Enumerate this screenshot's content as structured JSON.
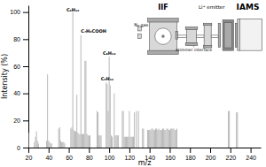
{
  "chart_data": {
    "type": "bar",
    "xlabel": "m/z",
    "ylabel": "Intensity (%)",
    "xlim": [
      20,
      250
    ],
    "ylim": [
      0,
      105
    ],
    "xticks": [
      20,
      40,
      60,
      80,
      100,
      120,
      140,
      160,
      180,
      200,
      220,
      240
    ],
    "yticks": [
      0,
      20,
      40,
      60,
      80,
      100
    ],
    "color": "#b8b8b8",
    "x": [
      20,
      26,
      27,
      28,
      29,
      30,
      38,
      39,
      40,
      41,
      42,
      43,
      50,
      51,
      52,
      53,
      54,
      55,
      56,
      62,
      63,
      64,
      65,
      66,
      67,
      68,
      69,
      70,
      71,
      72,
      73,
      74,
      75,
      76,
      77,
      78,
      79,
      80,
      81,
      88,
      89,
      90,
      91,
      92,
      97,
      98,
      99,
      100,
      101,
      102,
      103,
      105,
      106,
      107,
      108,
      109,
      113,
      114,
      115,
      116,
      117,
      118,
      119,
      120,
      121,
      122,
      123,
      124,
      125,
      127,
      129,
      133,
      134,
      138,
      139,
      140,
      141,
      142,
      143,
      144,
      145,
      146,
      147,
      148,
      149,
      150,
      151,
      152,
      153,
      154,
      155,
      156,
      157,
      158,
      159,
      160,
      161,
      162,
      163,
      164,
      165,
      166,
      167,
      218,
      219,
      226,
      227
    ],
    "values": [
      11,
      4,
      8,
      12,
      5,
      3,
      5,
      54,
      5,
      4,
      3,
      3,
      14,
      15,
      5,
      4,
      4,
      4,
      3,
      14,
      15,
      100,
      13,
      12,
      12,
      39,
      11,
      10,
      10,
      83,
      10,
      10,
      10,
      64,
      64,
      10,
      9,
      9,
      9,
      27,
      26,
      9,
      9,
      9,
      48,
      47,
      27,
      67,
      46,
      9,
      8,
      40,
      9,
      9,
      9,
      9,
      27,
      27,
      8,
      8,
      8,
      8,
      8,
      27,
      8,
      8,
      8,
      8,
      26,
      27,
      27,
      14,
      14,
      13,
      13,
      13,
      13,
      14,
      14,
      13,
      13,
      14,
      14,
      13,
      14,
      13,
      13,
      13,
      14,
      14,
      13,
      13,
      14,
      14,
      13,
      13,
      14,
      14,
      14,
      14,
      13,
      13,
      14,
      27,
      27,
      26,
      26
    ],
    "annotations": [
      {
        "text": "C₆H₁₂",
        "x": 64,
        "y": 100
      },
      {
        "text": "C₇H₆COOH",
        "x": 72,
        "y": 84
      },
      {
        "text": "C₈H₁₂",
        "x": 100,
        "y": 68
      },
      {
        "text": "C₉H₁₂",
        "x": 98,
        "y": 49
      },
      {
        "text": "N₂ gas"
      },
      {
        "text": "skimmer interface"
      },
      {
        "text": "IIF"
      },
      {
        "text": "IAMS"
      },
      {
        "text": "Li⁺ emitter"
      }
    ]
  }
}
